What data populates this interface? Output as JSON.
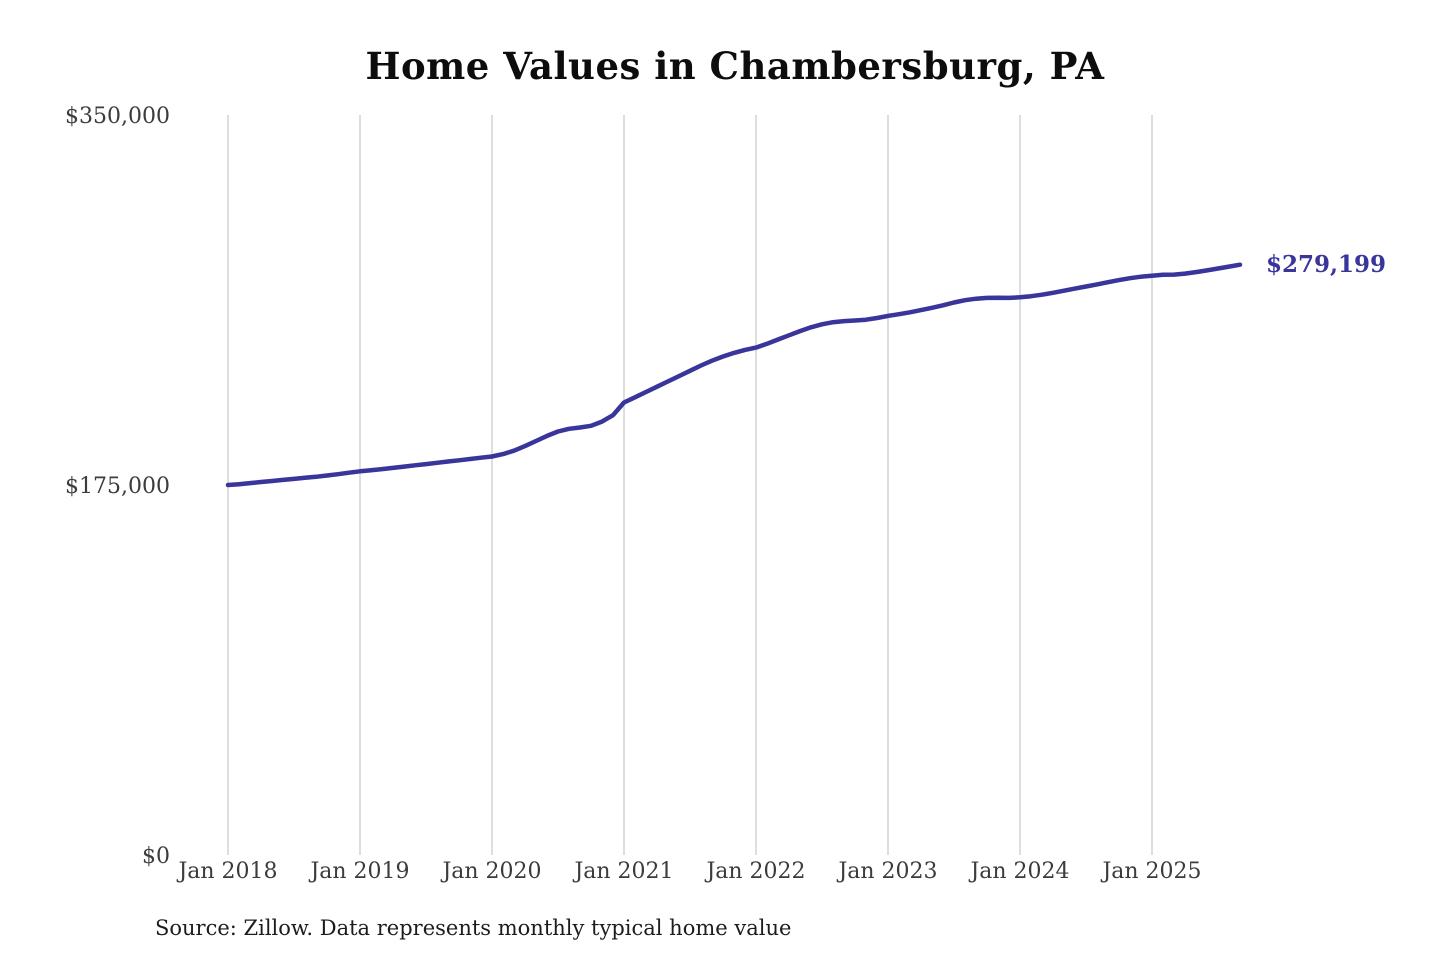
{
  "title": "Home Values in Chambersburg, PA",
  "source_note": "Source: Zillow. Data represents monthly typical home value",
  "end_label": "$279,199",
  "colors": {
    "line": "#39359b",
    "grid": "#c9c9c9",
    "axis_text": "#3c3c3c",
    "title_text": "#0d0d0d"
  },
  "chart_data": {
    "type": "line",
    "title": "Home Values in Chambersburg, PA",
    "xlabel": "",
    "ylabel": "",
    "ylim": [
      0,
      350000
    ],
    "y_ticks": [
      0,
      175000,
      350000
    ],
    "y_tick_labels": [
      "$0",
      "$175,000",
      "$350,000"
    ],
    "x_tick_labels": [
      "Jan 2018",
      "Jan 2019",
      "Jan 2020",
      "Jan 2021",
      "Jan 2022",
      "Jan 2023",
      "Jan 2024",
      "Jan 2025"
    ],
    "x_start_month": "2018-01",
    "x_end_month": "2025-09",
    "grid": "vertical-only",
    "legend": "none",
    "final_value": 279199,
    "final_value_label": "$279,199",
    "series": [
      {
        "name": "Monthly typical home value",
        "monthly_values": [
          175000,
          175400,
          175900,
          176400,
          176900,
          177400,
          177900,
          178400,
          178900,
          179500,
          180100,
          180800,
          181500,
          182000,
          182500,
          183100,
          183700,
          184300,
          184900,
          185500,
          186100,
          186700,
          187300,
          187900,
          188500,
          189600,
          191200,
          193400,
          195800,
          198200,
          200300,
          201600,
          202200,
          203000,
          205000,
          208000,
          214000,
          216500,
          219000,
          221500,
          224000,
          226500,
          229000,
          231500,
          233800,
          235800,
          237500,
          238900,
          240000,
          241800,
          243800,
          245800,
          247800,
          249600,
          251000,
          252000,
          252500,
          252800,
          253200,
          254000,
          255000,
          255800,
          256700,
          257700,
          258800,
          260000,
          261300,
          262400,
          263100,
          263500,
          263600,
          263500,
          263800,
          264300,
          265000,
          265900,
          266900,
          267900,
          268900,
          269900,
          270900,
          271900,
          272800,
          273500,
          274000,
          274400,
          274500,
          275000,
          275700,
          276500,
          277400,
          278300,
          279199
        ]
      }
    ]
  }
}
